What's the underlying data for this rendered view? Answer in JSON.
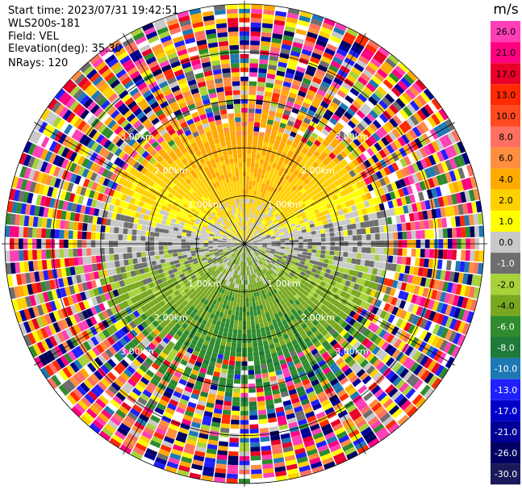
{
  "info": {
    "start_time": "Start time: 2023/07/31 19:42:51",
    "station": "WLS200s-181",
    "field": "Field: VEL",
    "elevation": "Elevation(deg): 35.30",
    "nrays": "NRays: 120"
  },
  "chart_data": {
    "type": "heatmap",
    "subtype": "polar-ppi",
    "title": "",
    "field": "VEL",
    "units": "m/s",
    "n_rays": 120,
    "range_rings": [
      "1.00km",
      "2.00km",
      "3.00km"
    ],
    "colorbar": {
      "label": "m/s",
      "ticks": [
        "26.0",
        "21.0",
        "17.0",
        "13.0",
        "10.0",
        "8.0",
        "6.0",
        "4.0",
        "2.0",
        "1.0",
        "0.0",
        "-1.0",
        "-2.0",
        "-4.0",
        "-6.0",
        "-8.0",
        "-10.0",
        "-13.0",
        "-17.0",
        "-21.0",
        "-26.0",
        "-30.0"
      ],
      "colors": [
        "#ff3fb5",
        "#ff0080",
        "#e8002a",
        "#ff2a00",
        "#ff4a20",
        "#ff7060",
        "#ff8f3f",
        "#ffaa00",
        "#ffd000",
        "#ffff00",
        "#c8c8c8",
        "#6e6e6e",
        "#a8d23a",
        "#78a820",
        "#2e8b2e",
        "#1e7a3a",
        "#1e78b4",
        "#2020ff",
        "#0000c8",
        "#000096",
        "#000060",
        "#1a1a5a"
      ]
    }
  }
}
